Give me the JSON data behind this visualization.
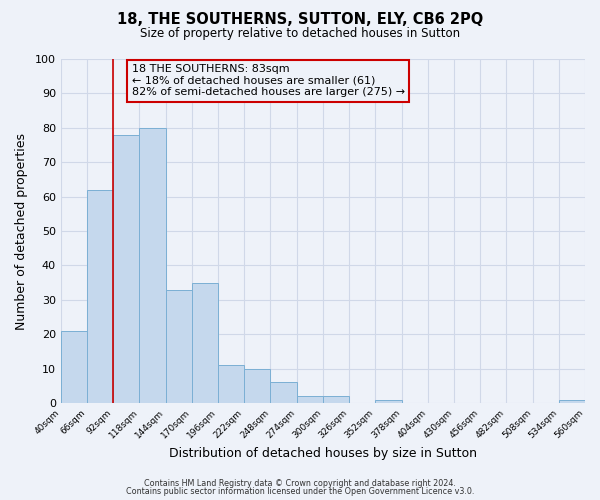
{
  "title": "18, THE SOUTHERNS, SUTTON, ELY, CB6 2PQ",
  "subtitle": "Size of property relative to detached houses in Sutton",
  "xlabel": "Distribution of detached houses by size in Sutton",
  "ylabel": "Number of detached properties",
  "bar_edges": [
    40,
    66,
    92,
    118,
    144,
    170,
    196,
    222,
    248,
    274,
    300,
    326,
    352,
    378,
    404,
    430,
    456,
    482,
    508,
    534,
    560
  ],
  "bar_heights": [
    21,
    62,
    78,
    80,
    33,
    35,
    11,
    10,
    6,
    2,
    2,
    0,
    1,
    0,
    0,
    0,
    0,
    0,
    0,
    1
  ],
  "bar_color": "#c5d8ed",
  "bar_edge_color": "#7bafd4",
  "marker_x": 92,
  "marker_color": "#cc0000",
  "ylim": [
    0,
    100
  ],
  "xlim": [
    40,
    560
  ],
  "annotation_title": "18 THE SOUTHERNS: 83sqm",
  "annotation_line1": "← 18% of detached houses are smaller (61)",
  "annotation_line2": "82% of semi-detached houses are larger (275) →",
  "annotation_box_color": "#cc0000",
  "footer_line1": "Contains HM Land Registry data © Crown copyright and database right 2024.",
  "footer_line2": "Contains public sector information licensed under the Open Government Licence v3.0.",
  "background_color": "#eef2f9",
  "grid_color": "#d0d8e8",
  "tick_labels": [
    "40sqm",
    "66sqm",
    "92sqm",
    "118sqm",
    "144sqm",
    "170sqm",
    "196sqm",
    "222sqm",
    "248sqm",
    "274sqm",
    "300sqm",
    "326sqm",
    "352sqm",
    "378sqm",
    "404sqm",
    "430sqm",
    "456sqm",
    "482sqm",
    "508sqm",
    "534sqm",
    "560sqm"
  ]
}
